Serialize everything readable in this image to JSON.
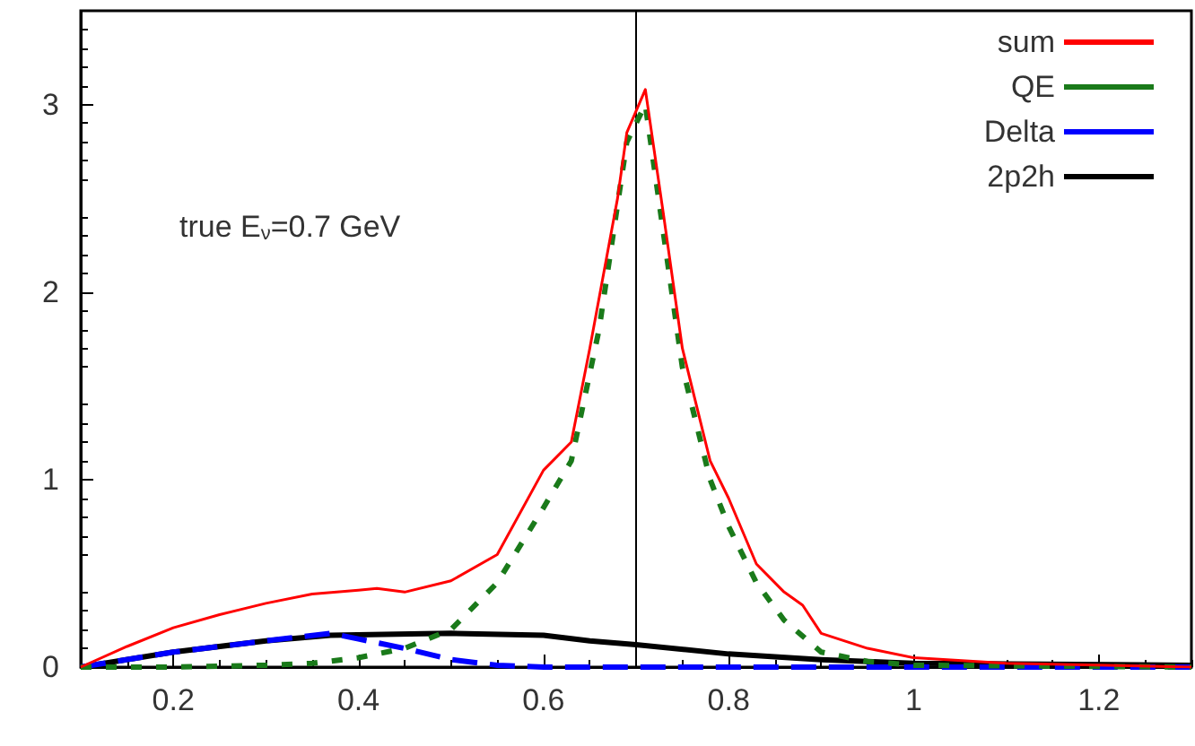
{
  "chart_data": {
    "type": "line",
    "xlim": [
      0.1,
      1.3
    ],
    "xticks": [
      0.2,
      0.4,
      0.6,
      0.8,
      1,
      1.2
    ],
    "ylim": [
      0,
      3.5
    ],
    "yticks": [
      0,
      1,
      2,
      3
    ],
    "grid": false,
    "legend": "top right",
    "marker": "none",
    "annotations": [
      "true E$_{ν}$=0.7 GeV"
    ],
    "ref_lines": [
      {
        "axis": "x",
        "value": 0.7,
        "color": "#000000",
        "line_style": "solid"
      }
    ],
    "series": [
      {
        "name": "sum",
        "color": "#ff0000",
        "line_style": "solid",
        "x": [
          0.1,
          0.15,
          0.2,
          0.25,
          0.3,
          0.35,
          0.4,
          0.42,
          0.45,
          0.5,
          0.55,
          0.6,
          0.63,
          0.65,
          0.68,
          0.69,
          0.71,
          0.73,
          0.75,
          0.78,
          0.8,
          0.83,
          0.86,
          0.88,
          0.9,
          0.95,
          1.0,
          1.1,
          1.3
        ],
        "values": [
          0,
          0.11,
          0.21,
          0.28,
          0.34,
          0.39,
          0.41,
          0.42,
          0.4,
          0.46,
          0.6,
          1.05,
          1.2,
          1.7,
          2.5,
          2.85,
          3.08,
          2.4,
          1.7,
          1.1,
          0.9,
          0.55,
          0.4,
          0.33,
          0.18,
          0.1,
          0.05,
          0.02,
          0
        ]
      },
      {
        "name": "QE",
        "color": "#1a7a1a",
        "line_style": "dashed",
        "x": [
          0.1,
          0.2,
          0.3,
          0.35,
          0.4,
          0.45,
          0.5,
          0.55,
          0.6,
          0.63,
          0.66,
          0.69,
          0.71,
          0.73,
          0.75,
          0.78,
          0.8,
          0.83,
          0.86,
          0.9,
          0.95,
          1.0,
          1.3
        ],
        "values": [
          0,
          0,
          0.01,
          0.02,
          0.05,
          0.1,
          0.2,
          0.45,
          0.85,
          1.1,
          1.8,
          2.8,
          3.0,
          2.3,
          1.6,
          1.0,
          0.75,
          0.45,
          0.25,
          0.08,
          0.03,
          0.01,
          0
        ]
      },
      {
        "name": "Delta",
        "color": "#0000ff",
        "line_style": "dashed",
        "x": [
          0.1,
          0.2,
          0.3,
          0.37,
          0.4,
          0.45,
          0.5,
          0.55,
          0.6,
          1.3
        ],
        "values": [
          0,
          0.08,
          0.14,
          0.18,
          0.15,
          0.1,
          0.04,
          0.01,
          0,
          0
        ]
      },
      {
        "name": "2p2h",
        "color": "#000000",
        "line_style": "solid",
        "x": [
          0.1,
          0.2,
          0.3,
          0.37,
          0.5,
          0.6,
          0.65,
          0.7,
          0.8,
          0.9,
          1.0,
          1.3
        ],
        "values": [
          0,
          0.08,
          0.14,
          0.17,
          0.18,
          0.17,
          0.14,
          0.12,
          0.07,
          0.04,
          0.02,
          0.01
        ]
      }
    ]
  }
}
